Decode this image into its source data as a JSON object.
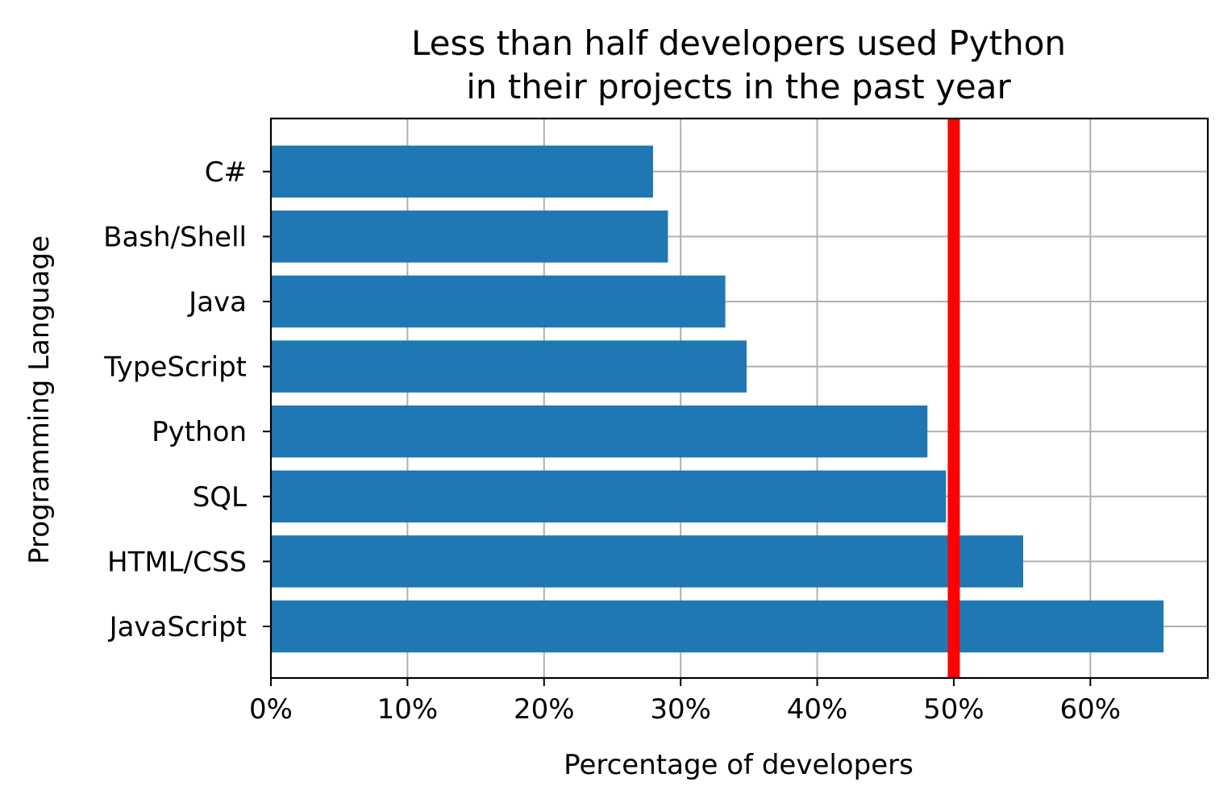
{
  "chart_data": {
    "type": "bar",
    "orientation": "horizontal",
    "title_lines": [
      "Less than half developers used Python",
      "in their projects in the past year"
    ],
    "xlabel": "Percentage of developers",
    "ylabel": "Programming Language",
    "categories": [
      "JavaScript",
      "HTML/CSS",
      "SQL",
      "Python",
      "TypeScript",
      "Java",
      "Bash/Shell",
      "C#"
    ],
    "values": [
      65.36,
      55.08,
      49.43,
      48.07,
      34.83,
      33.27,
      29.07,
      27.98
    ],
    "xlim": [
      0,
      68.6
    ],
    "xticks": [
      0,
      10,
      20,
      30,
      40,
      50,
      60
    ],
    "xtick_labels": [
      "0%",
      "10%",
      "20%",
      "30%",
      "40%",
      "50%",
      "60%"
    ],
    "reference_line": {
      "x": 50,
      "color": "#ff0000"
    },
    "bar_color": "#1f77b4",
    "grid": true,
    "legend": "none"
  }
}
